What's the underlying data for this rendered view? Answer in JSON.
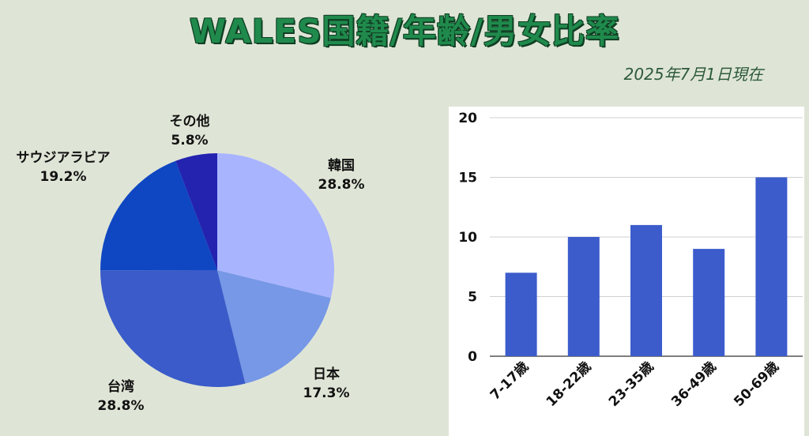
{
  "header": {
    "title": "WALES国籍/年齢/男女比率",
    "date": "2025年7月1日現在"
  },
  "chart_data": [
    {
      "type": "pie",
      "slices": [
        {
          "label": "韓国",
          "value": 28.8,
          "value_label": "28.8%",
          "color": "#a9b4ff"
        },
        {
          "label": "日本",
          "value": 17.3,
          "value_label": "17.3%",
          "color": "#7698e6"
        },
        {
          "label": "台湾",
          "value": 28.8,
          "value_label": "28.8%",
          "color": "#3a5bc9"
        },
        {
          "label": "サウジアラビア",
          "value": 19.2,
          "value_label": "19.2%",
          "color": "#0f47c2"
        },
        {
          "label": "その他",
          "value": 5.8,
          "value_label": "5.8%",
          "color": "#2323b0"
        }
      ]
    },
    {
      "type": "bar",
      "categories": [
        "7-17歳",
        "18-22歳",
        "23-35歳",
        "36-49歳",
        "50-69歳"
      ],
      "values": [
        7,
        10,
        11,
        9,
        15
      ],
      "ylim": [
        0,
        20
      ],
      "yticks": [
        "0",
        "5",
        "10",
        "15",
        "20"
      ],
      "color": "#3c5ccc",
      "grid": true
    }
  ]
}
